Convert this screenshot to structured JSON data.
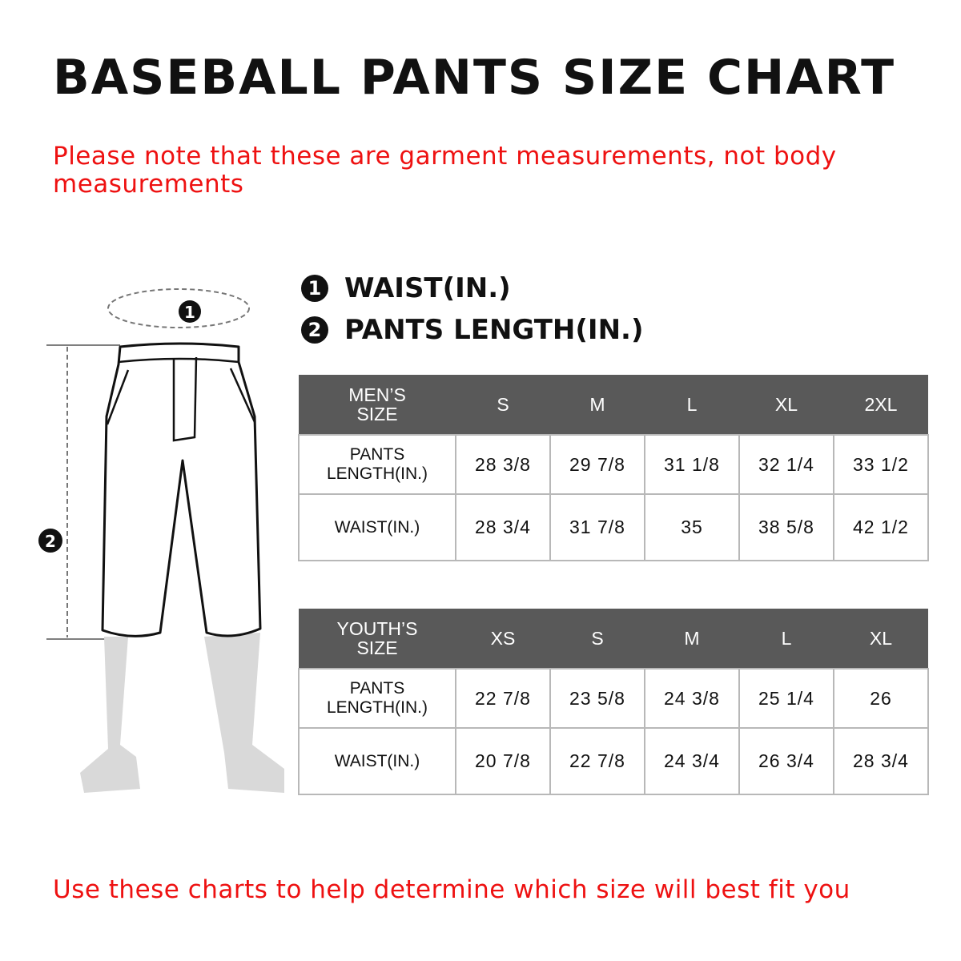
{
  "title": "BASEBALL PANTS SIZE CHART",
  "note": "Please note that these are garment measurements, not body measurements",
  "legend": [
    {
      "num": "1",
      "label": "WAIST(IN.)"
    },
    {
      "num": "2",
      "label": "PANTS LENGTH(IN.)"
    }
  ],
  "mens": {
    "header": "MEN’S SIZE",
    "sizes": [
      "S",
      "M",
      "L",
      "XL",
      "2XL"
    ],
    "rows": [
      {
        "label": "PANTS LENGTH(IN.)",
        "values": [
          "28 3/8",
          "29 7/8",
          "31 1/8",
          "32 1/4",
          "33 1/2"
        ]
      },
      {
        "label": "WAIST(IN.)",
        "values": [
          "28 3/4",
          "31 7/8",
          "35",
          "38 5/8",
          "42 1/2"
        ]
      }
    ]
  },
  "youth": {
    "header": "YOUTH’S SIZE",
    "sizes": [
      "XS",
      "S",
      "M",
      "L",
      "XL"
    ],
    "rows": [
      {
        "label": "PANTS LENGTH(IN.)",
        "values": [
          "22 7/8",
          "23 5/8",
          "24 3/8",
          "25 1/4",
          "26"
        ]
      },
      {
        "label": "WAIST(IN.)",
        "values": [
          "20 7/8",
          "22 7/8",
          "24 3/4",
          "26 3/4",
          "28 3/4"
        ]
      }
    ]
  },
  "footer": "Use these charts to help determine which size will best fit you",
  "colors": {
    "accent": "#ee1111",
    "header_bg": "#595959"
  }
}
